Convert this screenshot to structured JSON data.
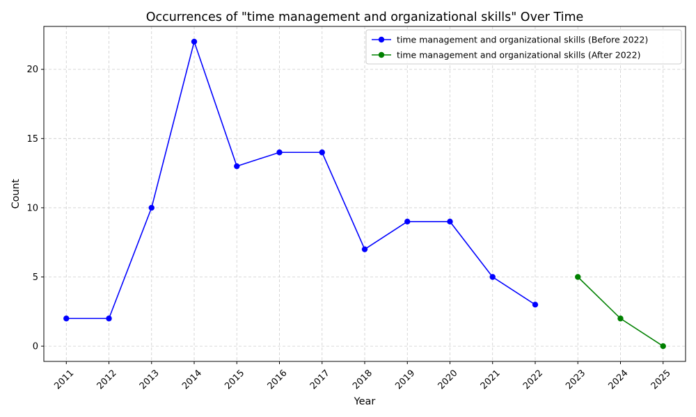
{
  "chart_data": {
    "type": "line",
    "title": "Occurrences of \"time management and organizational skills\" Over Time",
    "xlabel": "Year",
    "ylabel": "Count",
    "categories": [
      "2011",
      "2012",
      "2013",
      "2014",
      "2015",
      "2016",
      "2017",
      "2018",
      "2019",
      "2020",
      "2021",
      "2022",
      "2023",
      "2024",
      "2025"
    ],
    "ylim": [
      -1.1,
      23.1
    ],
    "yticks": [
      0,
      5,
      10,
      15,
      20
    ],
    "grid": true,
    "legend_position": "top-right",
    "series": [
      {
        "name": "time management and organizational skills (Before 2022)",
        "color": "#0000ff",
        "x": [
          "2011",
          "2012",
          "2013",
          "2014",
          "2015",
          "2016",
          "2017",
          "2018",
          "2019",
          "2020",
          "2021",
          "2022"
        ],
        "values": [
          2,
          2,
          10,
          22,
          13,
          14,
          14,
          7,
          9,
          9,
          5,
          3
        ]
      },
      {
        "name": "time management and organizational skills (After 2022)",
        "color": "#008000",
        "x": [
          "2023",
          "2024",
          "2025"
        ],
        "values": [
          5,
          2,
          0
        ]
      }
    ]
  }
}
